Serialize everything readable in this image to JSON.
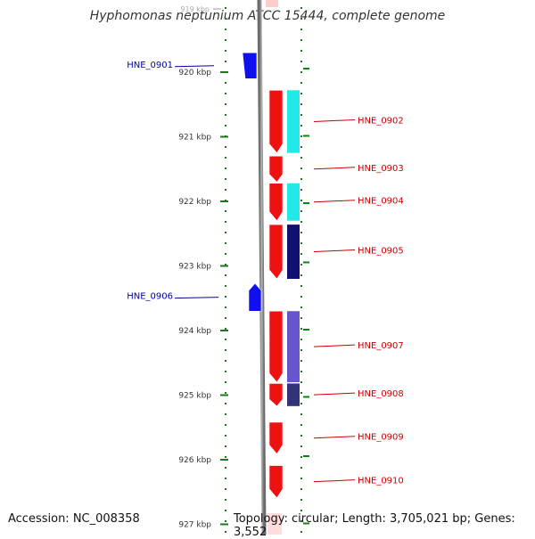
{
  "title": "Hyphomonas neptunium ATCC 15444, complete genome",
  "footer": {
    "accession": "Accession: NC_008358",
    "summary": "Topology: circular; Length: 3,705,021 bp; Genes: 3,552"
  },
  "scale": {
    "top_faint_label": "919 kbp",
    "labels": [
      "920 kbp",
      "921 kbp",
      "922 kbp",
      "923 kbp",
      "924 kbp",
      "925 kbp",
      "926 kbp",
      "927 kbp"
    ],
    "colors": {
      "major_tick": "#1a7a1a",
      "label": "#333333"
    }
  },
  "genes": [
    {
      "name": "HNE_0901",
      "strand": "minus",
      "start_kbp": 919.7,
      "end_kbp": 920.1,
      "color": "#1010ee",
      "label_color": "#0000aa"
    },
    {
      "name": "HNE_0902",
      "strand": "plus",
      "start_kbp": 920.28,
      "end_kbp": 921.25,
      "color": "#ee1111",
      "label_color": "#cc0000"
    },
    {
      "name": "HNE_0903",
      "strand": "plus",
      "start_kbp": 921.3,
      "end_kbp": 921.7,
      "color": "#ee1111",
      "label_color": "#cc0000"
    },
    {
      "name": "HNE_0904",
      "strand": "plus",
      "start_kbp": 921.72,
      "end_kbp": 922.3,
      "color": "#ee1111",
      "label_color": "#cc0000"
    },
    {
      "name": "HNE_0905",
      "strand": "plus",
      "start_kbp": 922.36,
      "end_kbp": 923.2,
      "color": "#ee1111",
      "label_color": "#cc0000"
    },
    {
      "name": "HNE_0906",
      "strand": "minus",
      "start_kbp": 923.27,
      "end_kbp": 923.7,
      "color": "#1010ee",
      "label_color": "#0000aa"
    },
    {
      "name": "HNE_0907",
      "strand": "plus",
      "start_kbp": 923.7,
      "end_kbp": 924.8,
      "color": "#ee1111",
      "label_color": "#cc0000"
    },
    {
      "name": "HNE_0908",
      "strand": "plus",
      "start_kbp": 924.82,
      "end_kbp": 925.17,
      "color": "#ee1111",
      "label_color": "#cc0000"
    },
    {
      "name": "HNE_0909",
      "strand": "plus",
      "start_kbp": 925.42,
      "end_kbp": 925.91,
      "color": "#ee1111",
      "label_color": "#cc0000"
    },
    {
      "name": "HNE_0910",
      "strand": "plus",
      "start_kbp": 926.09,
      "end_kbp": 926.59,
      "color": "#ee1111",
      "label_color": "#cc0000"
    }
  ],
  "cog_bars": [
    {
      "start_kbp": 920.28,
      "end_kbp": 921.25,
      "color": "#22e8e8"
    },
    {
      "start_kbp": 921.72,
      "end_kbp": 922.3,
      "color": "#22e8e8"
    },
    {
      "start_kbp": 922.36,
      "end_kbp": 923.2,
      "color": "#101070"
    },
    {
      "start_kbp": 923.7,
      "end_kbp": 924.8,
      "color": "#6655cc"
    },
    {
      "start_kbp": 924.82,
      "end_kbp": 925.17,
      "color": "#333377"
    }
  ]
}
